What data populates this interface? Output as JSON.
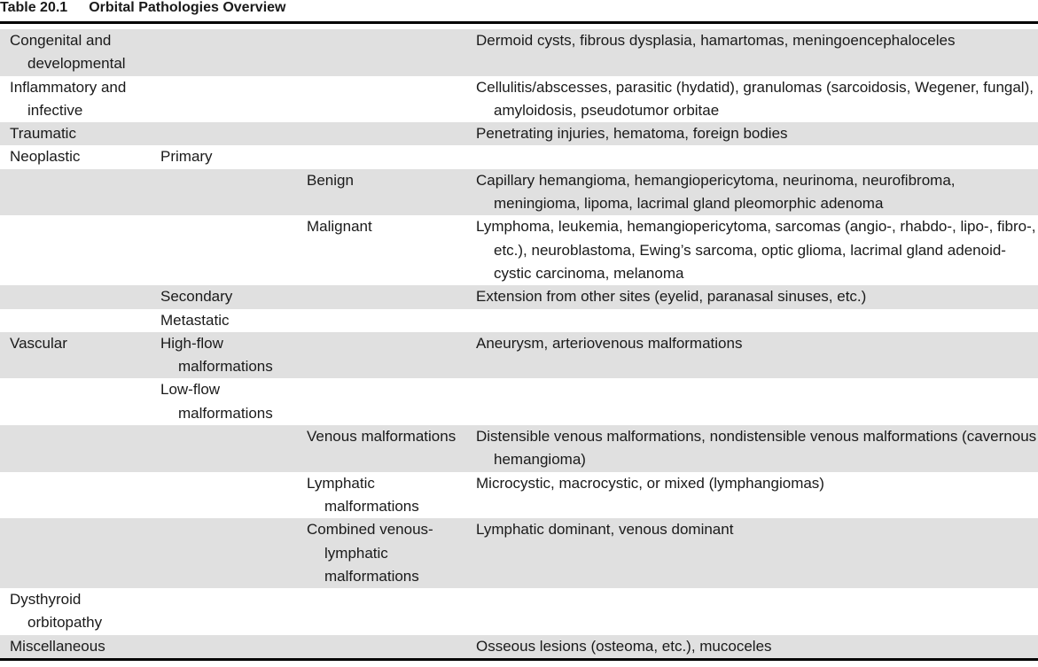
{
  "header": {
    "label": "Table 20.1",
    "title": "Orbital Pathologies Overview"
  },
  "table": {
    "rows": [
      [
        "Congenital and developmental",
        null,
        null,
        "Dermoid cysts, fibrous dysplasia, hamartomas, meningoencephaloceles"
      ],
      [
        "Inflammatory and infective",
        null,
        null,
        "Cellulitis/abscesses, parasitic (hydatid), granulomas (sarcoidosis, Wegener, fungal), amyloidosis, pseudotumor orbitae"
      ],
      [
        "Traumatic",
        null,
        null,
        "Penetrating injuries, hematoma, foreign bodies"
      ],
      [
        "Neoplastic",
        "Primary",
        null,
        null
      ],
      [
        null,
        null,
        "Benign",
        "Capillary hemangioma, hemangiopericytoma, neurinoma, neurofibroma, meningioma, lipoma, lacrimal gland pleomorphic adenoma"
      ],
      [
        null,
        null,
        "Malignant",
        "Lymphoma, leukemia, hemangiopericytoma, sarcomas (angio-, rhabdo-, lipo-, fibro-, etc.), neuroblastoma, Ewing’s sarcoma, optic glioma, lacrimal gland adenoid-cystic carcinoma, melanoma"
      ],
      [
        null,
        "Secondary",
        null,
        "Extension from other sites (eyelid, paranasal sinuses, etc.)"
      ],
      [
        null,
        "Metastatic",
        null,
        null
      ],
      [
        "Vascular",
        "High-flow malformations",
        null,
        "Aneurysm, arteriovenous malformations"
      ],
      [
        null,
        "Low-flow malformations",
        null,
        null
      ],
      [
        null,
        null,
        "Venous malformations",
        "Distensible venous malformations, nondistensible venous malformations (cavernous hemangioma)"
      ],
      [
        null,
        null,
        "Lymphatic malformations",
        "Microcystic, macrocystic, or mixed (lymphangiomas)"
      ],
      [
        null,
        null,
        "Combined venous-lymphatic malformations",
        "Lymphatic dominant, venous dominant"
      ],
      [
        "Dysthyroid orbitopathy",
        null,
        null,
        null
      ],
      [
        "Miscellaneous",
        null,
        null,
        "Osseous lesions (osteoma, etc.), mucoceles"
      ]
    ]
  }
}
